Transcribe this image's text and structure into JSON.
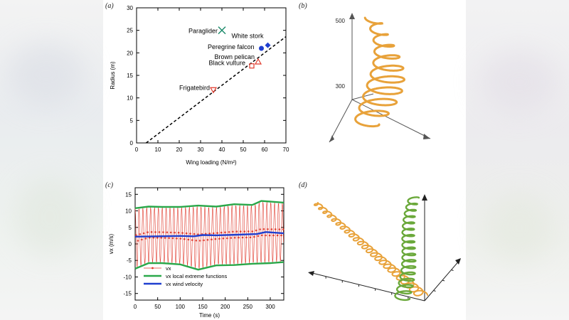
{
  "panels": {
    "a": "(a)",
    "b": "(b)",
    "c": "(c)",
    "d": "(d)"
  },
  "colors": {
    "axis": "#000000",
    "red": "#e0392b",
    "blue": "#1f3fcf",
    "green": "#2aa84a",
    "teal": "#1a8a6a",
    "orange": "#e8a23a",
    "green3d": "#6aa83a",
    "gray": "#555555"
  },
  "chart_data": [
    {
      "id": "a",
      "type": "scatter",
      "xlabel": "Wing loading (N/m²)",
      "ylabel": "Radius (m)",
      "xlim": [
        0,
        70
      ],
      "ylim": [
        0,
        30
      ],
      "xticks": [
        0,
        10,
        20,
        30,
        40,
        50,
        60,
        70
      ],
      "yticks": [
        0,
        5,
        10,
        15,
        20,
        25,
        30
      ],
      "points": [
        {
          "label": "Paraglider",
          "x": 40,
          "y": 25,
          "marker": "x",
          "color": "#1a8a6a"
        },
        {
          "label": "White stork",
          "x": 61.5,
          "y": 21.7,
          "marker": "diamond",
          "color": "#1f3fcf"
        },
        {
          "label": "Peregrine falcon",
          "x": 58.5,
          "y": 21,
          "marker": "circle",
          "color": "#1f3fcf"
        },
        {
          "label": "Brown pelican",
          "x": 57,
          "y": 18,
          "marker": "triangle-up",
          "color": "#e0392b"
        },
        {
          "label": "Black vulture",
          "x": 54,
          "y": 17.1,
          "marker": "square",
          "color": "#e0392b"
        },
        {
          "label": "Frigatebird",
          "x": 36,
          "y": 11.8,
          "marker": "triangle-down",
          "color": "#e0392b"
        }
      ],
      "fit_line": {
        "x": [
          4.5,
          70
        ],
        "y": [
          0,
          23.6
        ],
        "style": "dashed"
      }
    },
    {
      "id": "c",
      "type": "line",
      "xlabel": "Time (s)",
      "ylabel": "vx (m/s)",
      "xlim": [
        0,
        330
      ],
      "ylim": [
        -17,
        17
      ],
      "xticks": [
        0,
        50,
        100,
        150,
        200,
        250,
        300
      ],
      "yticks": [
        -15,
        -10,
        -5,
        0,
        5,
        10,
        15
      ],
      "legend_position": "bottom-left",
      "series": [
        {
          "name": "vx",
          "color": "#e0392b",
          "kind": "oscillation",
          "period_s": 8.6,
          "center": 3,
          "amplitude": 8.6
        },
        {
          "name": "vx local extreme functions",
          "color": "#2aa84a",
          "upper": [
            [
              0,
              10.8
            ],
            [
              30,
              11.3
            ],
            [
              60,
              11.2
            ],
            [
              100,
              11.2
            ],
            [
              140,
              11.6
            ],
            [
              180,
              11.3
            ],
            [
              220,
              12.0
            ],
            [
              260,
              11.8
            ],
            [
              280,
              13.0
            ],
            [
              300,
              12.8
            ],
            [
              330,
              12.5
            ]
          ],
          "lower": [
            [
              0,
              -7.5
            ],
            [
              30,
              -5.8
            ],
            [
              60,
              -5.8
            ],
            [
              100,
              -6.2
            ],
            [
              140,
              -7.8
            ],
            [
              180,
              -6.5
            ],
            [
              220,
              -6.4
            ],
            [
              260,
              -6.0
            ],
            [
              300,
              -5.8
            ],
            [
              330,
              -5.5
            ]
          ]
        },
        {
          "name": "vx wind velocity",
          "color": "#1f3fcf",
          "points": [
            [
              0,
              2.2
            ],
            [
              50,
              2.3
            ],
            [
              100,
              2.4
            ],
            [
              130,
              2.3
            ],
            [
              150,
              2.7
            ],
            [
              180,
              2.6
            ],
            [
              230,
              2.8
            ],
            [
              270,
              3.0
            ],
            [
              290,
              3.6
            ],
            [
              330,
              3.2
            ]
          ]
        }
      ]
    },
    {
      "id": "b",
      "type": "3d-trajectory",
      "ticks": [
        "500",
        "300"
      ]
    }
  ]
}
